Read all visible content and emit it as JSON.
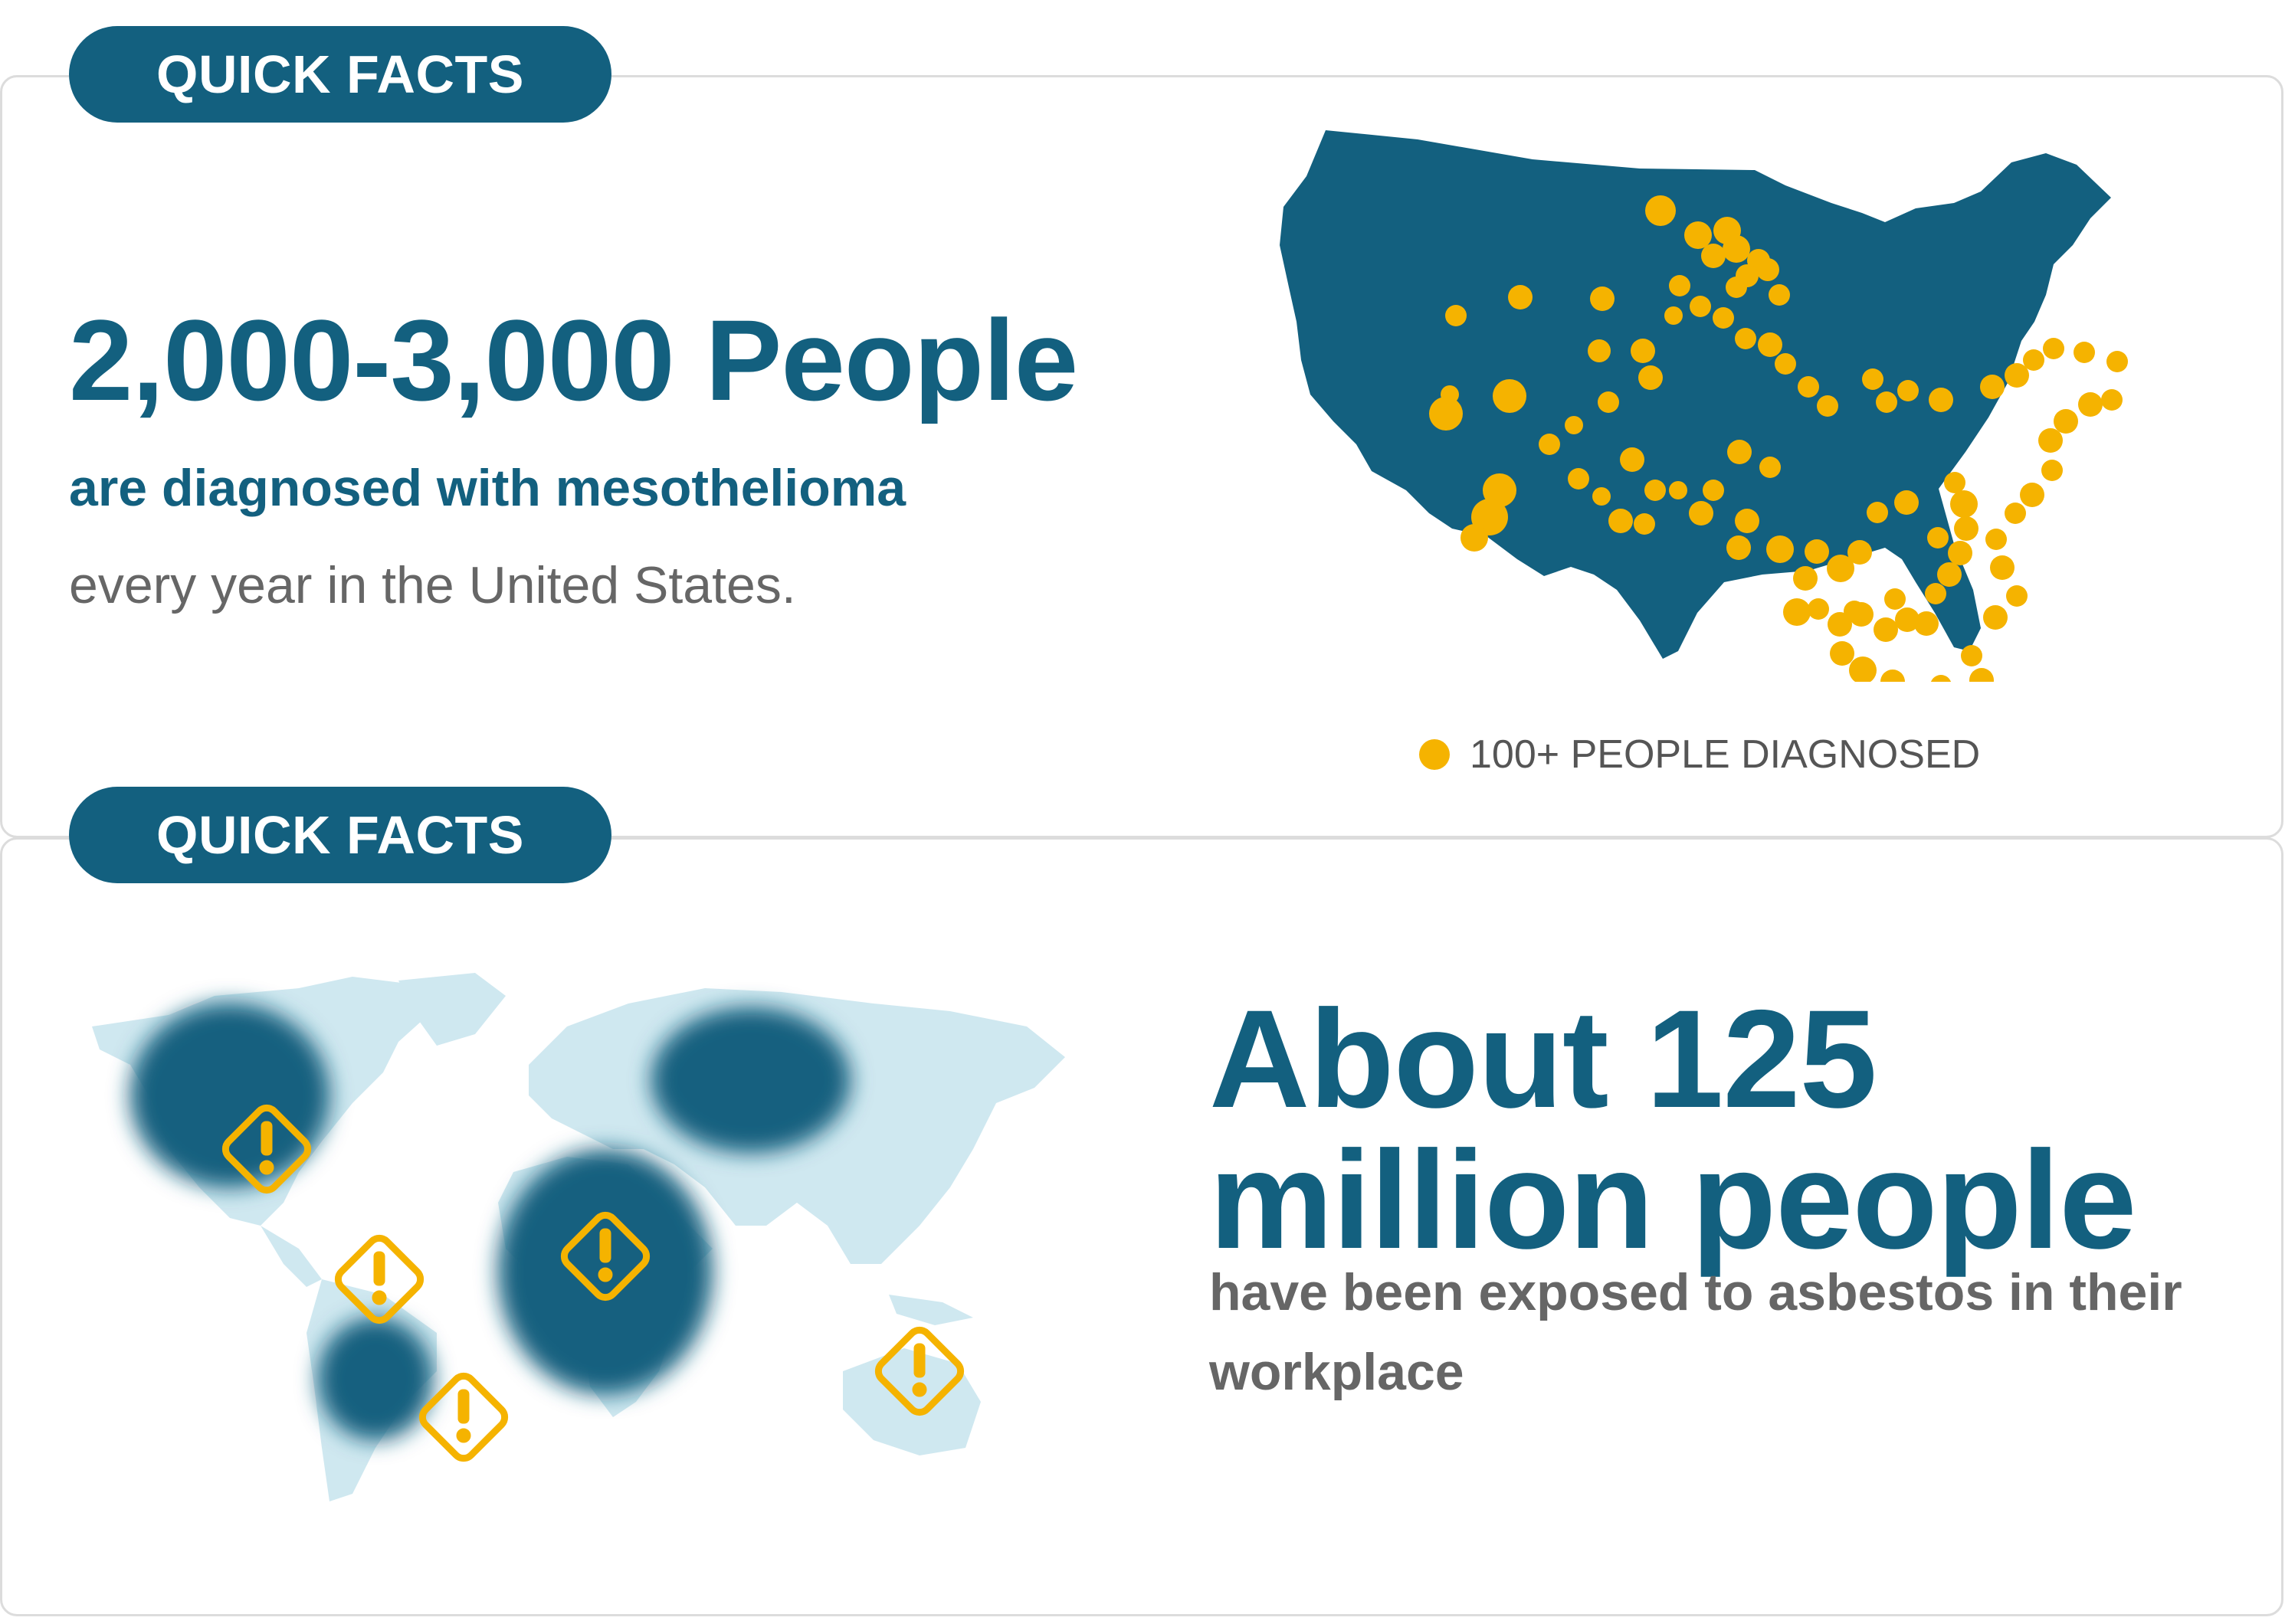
{
  "colors": {
    "primary": "#13607f",
    "accent": "#f5b300",
    "world_land": "#cfe8f0",
    "text_gray": "#666666",
    "legend_gray": "#555555"
  },
  "section1": {
    "badge": "QUICK FACTS",
    "headline": "2,000-3,000 People",
    "subheadline": "are diagnosed with mesothelioma",
    "body": "every year in the United States.",
    "legend_label": "100+ PEOPLE DIAGNOSED",
    "map_icon": "us-map-with-diagnosis-dots"
  },
  "section2": {
    "badge": "QUICK FACTS",
    "headline_line1": "About 125",
    "headline_line2": "million people",
    "body": "have been exposed to asbestos in their workplace",
    "map_icon": "world-map-with-warning-icons"
  }
}
